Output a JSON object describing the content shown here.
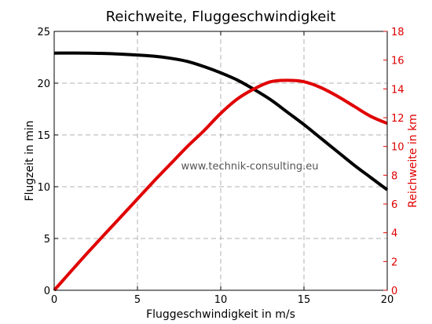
{
  "chart_data": {
    "type": "line",
    "title": "Reichweite, Fluggeschwindigkeit",
    "xlabel": "Fluggeschwindigkeit in m/s",
    "ylabel_left": "Flugzeit in min",
    "ylabel_right": "Reichweite in km",
    "watermark": "www.technik-consulting.eu",
    "xlim": [
      0,
      20
    ],
    "ylim_left": [
      0,
      25
    ],
    "ylim_right": [
      0,
      18
    ],
    "x_ticks": [
      "0",
      "5",
      "10",
      "15",
      "20"
    ],
    "y_left_ticks": [
      "0",
      "5",
      "10",
      "15",
      "20",
      "25"
    ],
    "y_right_ticks": [
      "0",
      "2",
      "4",
      "6",
      "8",
      "10",
      "12",
      "14",
      "16",
      "18"
    ],
    "grid": true,
    "colors": {
      "left_series": "#000000",
      "right_series": "#e00000"
    },
    "series": [
      {
        "axis": "left",
        "color": "#000000",
        "x": [
          0,
          2,
          4,
          6,
          7,
          8,
          9,
          10,
          11,
          12,
          13,
          14,
          15,
          16,
          17,
          18,
          19,
          20
        ],
        "y": [
          22.9,
          22.9,
          22.8,
          22.6,
          22.4,
          22.1,
          21.6,
          21.0,
          20.3,
          19.4,
          18.4,
          17.2,
          16.0,
          14.7,
          13.4,
          12.1,
          10.9,
          9.7
        ]
      },
      {
        "axis": "right",
        "color": "#e00000",
        "x": [
          0,
          2,
          4,
          6,
          7,
          8,
          9,
          10,
          11,
          12,
          13,
          14,
          15,
          16,
          17,
          18,
          19,
          20
        ],
        "y": [
          0,
          2.6,
          5.1,
          7.6,
          8.8,
          10.0,
          11.1,
          12.3,
          13.3,
          14.0,
          14.5,
          14.6,
          14.5,
          14.1,
          13.5,
          12.8,
          12.1,
          11.6
        ]
      }
    ]
  }
}
